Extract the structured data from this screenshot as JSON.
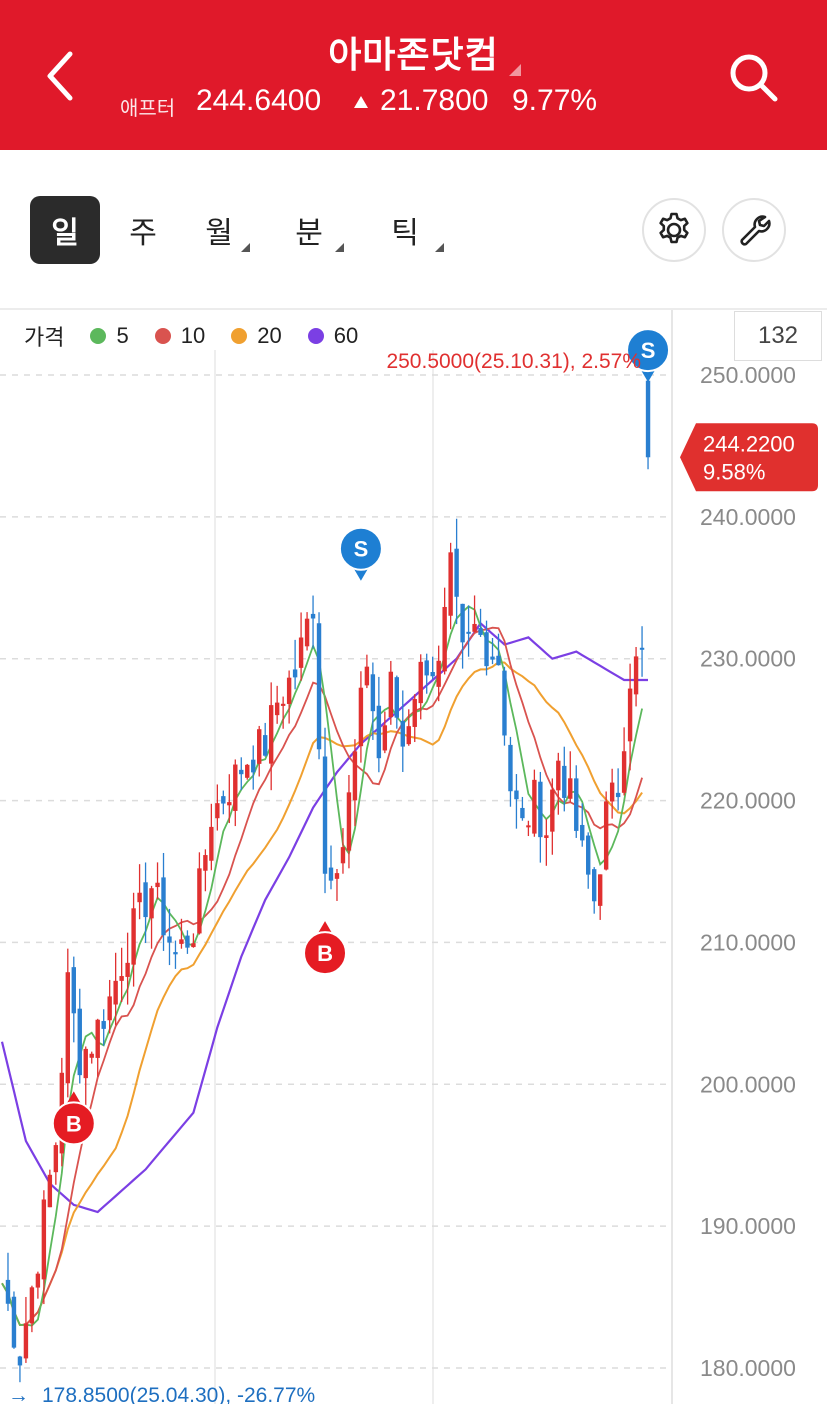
{
  "header": {
    "title": "아마존닷컴",
    "quote_label": "애프터",
    "price": "244.6400",
    "change": "21.7800",
    "change_pct": "9.77%",
    "bg_color": "#e0192a"
  },
  "tabs": [
    {
      "label": "일",
      "active": true,
      "has_menu": false
    },
    {
      "label": "주",
      "active": false,
      "has_menu": false
    },
    {
      "label": "월",
      "active": false,
      "has_menu": true
    },
    {
      "label": "분",
      "active": false,
      "has_menu": true
    },
    {
      "label": "틱",
      "active": false,
      "has_menu": true
    }
  ],
  "toolbar": {
    "settings_icon": "gear-icon",
    "tools_icon": "wrench-icon"
  },
  "legend": {
    "price_label": "가격",
    "items": [
      {
        "label": "5",
        "color": "#5cb85c"
      },
      {
        "label": "10",
        "color": "#d9534f"
      },
      {
        "label": "20",
        "color": "#f0a030"
      },
      {
        "label": "60",
        "color": "#7b3fe4"
      }
    ]
  },
  "count": "132",
  "chart_data": {
    "type": "candlestick",
    "ylim": [
      180,
      250
    ],
    "yticks": [
      "250.0000",
      "240.0000",
      "230.0000",
      "220.0000",
      "210.0000",
      "200.0000",
      "190.0000",
      "180.0000"
    ],
    "current": {
      "price": "244.2200",
      "pct": "9.58%"
    },
    "high_annotation": "250.5000(25.10.31), 2.57%",
    "low_annotation": "178.8500(25.04.30), -26.77%",
    "signals": [
      {
        "type": "B",
        "index": 12,
        "price": 199.5
      },
      {
        "type": "B",
        "index": 54,
        "price": 211.5
      },
      {
        "type": "S",
        "index": 60,
        "price": 235.5
      },
      {
        "type": "S",
        "index": 108,
        "price": 249.5
      }
    ],
    "anchors": [
      [
        0,
        186
      ],
      [
        3,
        181
      ],
      [
        6,
        188
      ],
      [
        9,
        196
      ],
      [
        11,
        207
      ],
      [
        13,
        202
      ],
      [
        15,
        203
      ],
      [
        18,
        206
      ],
      [
        21,
        210
      ],
      [
        25,
        214
      ],
      [
        29,
        209
      ],
      [
        32,
        211
      ],
      [
        35,
        219
      ],
      [
        38,
        221
      ],
      [
        41,
        223
      ],
      [
        44,
        224
      ],
      [
        46,
        227
      ],
      [
        49,
        229
      ],
      [
        52,
        234
      ],
      [
        54,
        215
      ],
      [
        57,
        217
      ],
      [
        59,
        223
      ],
      [
        61,
        230
      ],
      [
        63,
        223
      ],
      [
        65,
        228
      ],
      [
        67,
        224
      ],
      [
        69,
        228
      ],
      [
        71,
        230
      ],
      [
        73,
        229
      ],
      [
        75,
        236
      ],
      [
        77,
        230
      ],
      [
        79,
        232
      ],
      [
        81,
        231
      ],
      [
        83,
        230
      ],
      [
        85,
        221
      ],
      [
        87,
        218
      ],
      [
        89,
        220
      ],
      [
        91,
        218
      ],
      [
        93,
        223
      ],
      [
        95,
        220
      ],
      [
        97,
        216
      ],
      [
        99,
        213
      ],
      [
        101,
        219
      ],
      [
        103,
        221
      ],
      [
        105,
        229
      ],
      [
        107,
        230
      ],
      [
        108,
        245
      ]
    ],
    "ma60": [
      [
        0,
        203
      ],
      [
        4,
        196
      ],
      [
        8,
        193
      ],
      [
        12,
        191.5
      ],
      [
        16,
        191
      ],
      [
        20,
        192.5
      ],
      [
        24,
        194
      ],
      [
        28,
        196
      ],
      [
        32,
        198
      ],
      [
        36,
        204
      ],
      [
        40,
        209
      ],
      [
        44,
        213
      ],
      [
        48,
        216
      ],
      [
        52,
        219.5
      ],
      [
        56,
        222
      ],
      [
        60,
        224
      ],
      [
        64,
        225.5
      ],
      [
        68,
        227
      ],
      [
        72,
        228.5
      ],
      [
        76,
        230
      ],
      [
        80,
        232.5
      ],
      [
        84,
        231
      ],
      [
        88,
        231.5
      ],
      [
        92,
        230
      ],
      [
        96,
        230.5
      ],
      [
        100,
        229.5
      ],
      [
        104,
        228.5
      ],
      [
        108,
        228.5
      ]
    ]
  }
}
